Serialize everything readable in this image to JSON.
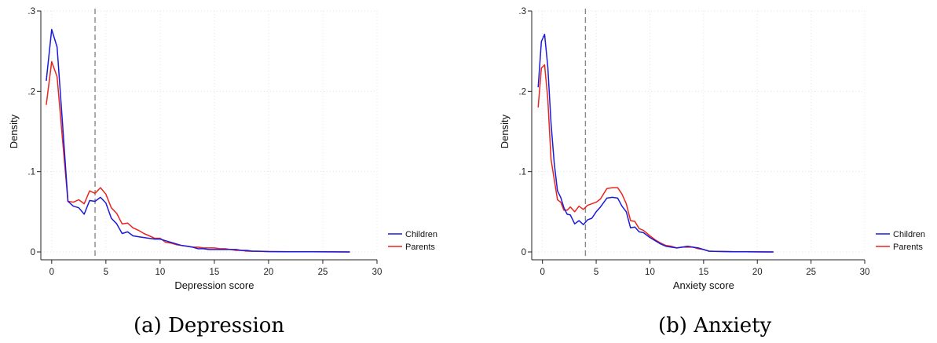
{
  "figure": {
    "panels": [
      {
        "caption_letter": "(a)",
        "caption_text": "Depression"
      },
      {
        "caption_letter": "(b)",
        "caption_text": "Anxiety"
      }
    ]
  },
  "chart_data": [
    {
      "type": "line",
      "title": "",
      "xlabel": "Depression score",
      "ylabel": "Density",
      "xlim": [
        -1,
        30
      ],
      "ylim": [
        0,
        0.3
      ],
      "x_ticks": [
        0,
        5,
        10,
        15,
        20,
        25,
        30
      ],
      "x_tick_labels": [
        "0",
        "5",
        "10",
        "15",
        "20",
        "25",
        "30"
      ],
      "y_ticks": [
        0,
        0.1,
        0.2,
        0.3
      ],
      "y_tick_labels": [
        "0",
        ".1",
        ".2",
        ".3"
      ],
      "grid": true,
      "legend_position": "bottom-right, outside plot",
      "reference_line": {
        "x": 4,
        "style": "dashed",
        "color": "#888888"
      },
      "series": [
        {
          "name": "Children",
          "color": "#1a1adb",
          "points": [
            [
              -0.5,
              0.213
            ],
            [
              0,
              0.277
            ],
            [
              0.5,
              0.255
            ],
            [
              1,
              0.16
            ],
            [
              1.5,
              0.063
            ],
            [
              2,
              0.057
            ],
            [
              2.5,
              0.055
            ],
            [
              3,
              0.047
            ],
            [
              3.5,
              0.064
            ],
            [
              4,
              0.063
            ],
            [
              4.5,
              0.068
            ],
            [
              5,
              0.061
            ],
            [
              5.5,
              0.042
            ],
            [
              6,
              0.035
            ],
            [
              6.5,
              0.023
            ],
            [
              7,
              0.025
            ],
            [
              7.5,
              0.02
            ],
            [
              8,
              0.019
            ],
            [
              8.5,
              0.018
            ],
            [
              9,
              0.017
            ],
            [
              9.5,
              0.016
            ],
            [
              10,
              0.016
            ],
            [
              10.5,
              0.014
            ],
            [
              11,
              0.012
            ],
            [
              11.5,
              0.01
            ],
            [
              12,
              0.008
            ],
            [
              12.5,
              0.007
            ],
            [
              13,
              0.006
            ],
            [
              13.5,
              0.004
            ],
            [
              14,
              0.004
            ],
            [
              14.5,
              0.003
            ],
            [
              15,
              0.003
            ],
            [
              15.5,
              0.003
            ],
            [
              16,
              0.003
            ],
            [
              16.5,
              0.003
            ],
            [
              17,
              0.003
            ],
            [
              17.5,
              0.002
            ],
            [
              18,
              0.002
            ],
            [
              18.5,
              0.001
            ],
            [
              19,
              0.001
            ],
            [
              20,
              0.0005
            ],
            [
              22,
              0.0003
            ],
            [
              24,
              0.0002
            ],
            [
              26,
              0.0001
            ],
            [
              27.5,
              0.0
            ]
          ]
        },
        {
          "name": "Parents",
          "color": "#e8251f",
          "points": [
            [
              -0.5,
              0.183
            ],
            [
              0,
              0.237
            ],
            [
              0.5,
              0.218
            ],
            [
              1,
              0.14
            ],
            [
              1.5,
              0.063
            ],
            [
              2,
              0.062
            ],
            [
              2.5,
              0.065
            ],
            [
              3,
              0.06
            ],
            [
              3.5,
              0.076
            ],
            [
              4,
              0.073
            ],
            [
              4.5,
              0.08
            ],
            [
              5,
              0.072
            ],
            [
              5.5,
              0.055
            ],
            [
              6,
              0.048
            ],
            [
              6.5,
              0.035
            ],
            [
              7,
              0.036
            ],
            [
              7.5,
              0.03
            ],
            [
              8,
              0.027
            ],
            [
              8.5,
              0.023
            ],
            [
              9,
              0.02
            ],
            [
              9.5,
              0.017
            ],
            [
              10,
              0.017
            ],
            [
              10.5,
              0.012
            ],
            [
              11,
              0.011
            ],
            [
              11.5,
              0.009
            ],
            [
              12,
              0.008
            ],
            [
              12.5,
              0.007
            ],
            [
              13,
              0.006
            ],
            [
              13.5,
              0.006
            ],
            [
              14,
              0.005
            ],
            [
              14.5,
              0.005
            ],
            [
              15,
              0.005
            ],
            [
              15.5,
              0.004
            ],
            [
              16,
              0.004
            ],
            [
              16.5,
              0.003
            ],
            [
              17,
              0.002
            ],
            [
              17.5,
              0.002
            ],
            [
              18,
              0.001
            ],
            [
              19,
              0.0008
            ],
            [
              20,
              0.0005
            ],
            [
              22,
              0.0003
            ],
            [
              24,
              0.0002
            ],
            [
              26,
              0.0001
            ],
            [
              27.5,
              0.0
            ]
          ]
        }
      ]
    },
    {
      "type": "line",
      "title": "",
      "xlabel": "Anxiety score",
      "ylabel": "Density",
      "xlim": [
        -1,
        30
      ],
      "ylim": [
        0,
        0.3
      ],
      "x_ticks": [
        0,
        5,
        10,
        15,
        20,
        25,
        30
      ],
      "x_tick_labels": [
        "0",
        "5",
        "10",
        "15",
        "20",
        "25",
        "30"
      ],
      "y_ticks": [
        0,
        0.1,
        0.2,
        0.3
      ],
      "y_tick_labels": [
        "0",
        ".1",
        ".2",
        ".3"
      ],
      "grid": true,
      "legend_position": "bottom-right, outside plot",
      "reference_line": {
        "x": 4,
        "style": "dashed",
        "color": "#888888"
      },
      "series": [
        {
          "name": "Children",
          "color": "#1a1adb",
          "points": [
            [
              -0.4,
              0.205
            ],
            [
              -0.1,
              0.262
            ],
            [
              0.2,
              0.271
            ],
            [
              0.5,
              0.23
            ],
            [
              0.8,
              0.16
            ],
            [
              1.1,
              0.11
            ],
            [
              1.4,
              0.076
            ],
            [
              1.7,
              0.068
            ],
            [
              2,
              0.055
            ],
            [
              2.3,
              0.047
            ],
            [
              2.6,
              0.046
            ],
            [
              3,
              0.035
            ],
            [
              3.4,
              0.039
            ],
            [
              3.8,
              0.034
            ],
            [
              4.2,
              0.04
            ],
            [
              4.6,
              0.042
            ],
            [
              5,
              0.05
            ],
            [
              5.4,
              0.056
            ],
            [
              6,
              0.067
            ],
            [
              6.5,
              0.068
            ],
            [
              7,
              0.067
            ],
            [
              7.4,
              0.057
            ],
            [
              7.8,
              0.05
            ],
            [
              8.2,
              0.03
            ],
            [
              8.6,
              0.031
            ],
            [
              9,
              0.025
            ],
            [
              9.4,
              0.024
            ],
            [
              10,
              0.018
            ],
            [
              10.5,
              0.014
            ],
            [
              11,
              0.01
            ],
            [
              11.5,
              0.007
            ],
            [
              12,
              0.006
            ],
            [
              12.5,
              0.005
            ],
            [
              13,
              0.006
            ],
            [
              13.5,
              0.007
            ],
            [
              14,
              0.006
            ],
            [
              14.5,
              0.005
            ],
            [
              15,
              0.003
            ],
            [
              15.5,
              0.001
            ],
            [
              16,
              0.0008
            ],
            [
              17,
              0.0005
            ],
            [
              18,
              0.0003
            ],
            [
              19,
              0.0002
            ],
            [
              20,
              0.0001
            ],
            [
              21.5,
              0.0
            ]
          ]
        },
        {
          "name": "Parents",
          "color": "#e8251f",
          "points": [
            [
              -0.4,
              0.18
            ],
            [
              -0.1,
              0.229
            ],
            [
              0.2,
              0.233
            ],
            [
              0.5,
              0.19
            ],
            [
              0.8,
              0.115
            ],
            [
              1.1,
              0.09
            ],
            [
              1.4,
              0.065
            ],
            [
              1.7,
              0.062
            ],
            [
              2,
              0.052
            ],
            [
              2.3,
              0.052
            ],
            [
              2.6,
              0.056
            ],
            [
              3,
              0.05
            ],
            [
              3.4,
              0.057
            ],
            [
              3.8,
              0.053
            ],
            [
              4.2,
              0.058
            ],
            [
              4.6,
              0.06
            ],
            [
              5,
              0.062
            ],
            [
              5.4,
              0.066
            ],
            [
              6,
              0.079
            ],
            [
              6.5,
              0.08
            ],
            [
              7,
              0.08
            ],
            [
              7.4,
              0.072
            ],
            [
              7.8,
              0.06
            ],
            [
              8.2,
              0.039
            ],
            [
              8.6,
              0.038
            ],
            [
              9,
              0.029
            ],
            [
              9.4,
              0.027
            ],
            [
              10,
              0.02
            ],
            [
              10.5,
              0.015
            ],
            [
              11,
              0.011
            ],
            [
              11.5,
              0.008
            ],
            [
              12,
              0.007
            ],
            [
              12.5,
              0.005
            ],
            [
              13,
              0.006
            ],
            [
              13.5,
              0.006
            ],
            [
              14,
              0.006
            ],
            [
              14.5,
              0.004
            ],
            [
              15,
              0.003
            ],
            [
              15.5,
              0.001
            ],
            [
              16,
              0.0008
            ],
            [
              17,
              0.0005
            ],
            [
              18,
              0.0003
            ],
            [
              19,
              0.0002
            ],
            [
              20,
              0.0001
            ],
            [
              21.5,
              0.0
            ]
          ]
        }
      ]
    }
  ]
}
